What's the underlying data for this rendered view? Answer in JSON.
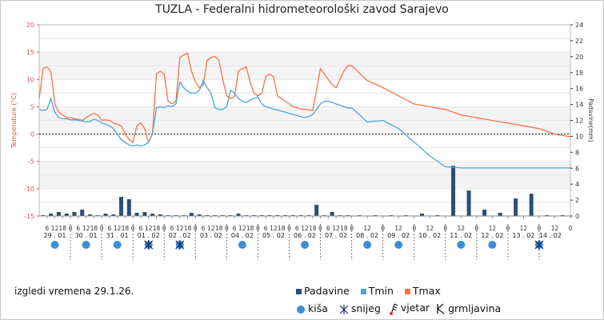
{
  "title": "TUZLA - Federalni hidrometeorološki zavod Sarajevo",
  "issued_label": "izgledi vremena 29.1.26.",
  "legend": {
    "padavine": "Padavine",
    "tmin": "Tmin",
    "tmax": "Tmax",
    "kisa": "kiša",
    "snijeg": "snijeg",
    "vjetar": "vjetar",
    "grmljavina": "grmljavina"
  },
  "colors": {
    "tmax": "#ff7043",
    "tmin": "#4da6d6",
    "precip": "#2b4e7a",
    "rain": "#3a8fd9",
    "snow": "#1a2f6a",
    "grid": "#e6e6e6"
  },
  "chart_data": {
    "type": "line",
    "title": "TUZLA - Federalni hidrometeorološki zavod Sarajevo",
    "ylabel": "Temperature (°C)",
    "y2label": "Padavine(mm)",
    "ylim": [
      -15,
      20
    ],
    "y2lim": [
      0,
      24
    ],
    "yticks": [
      -15,
      -10,
      -5,
      0,
      5,
      10,
      15,
      20
    ],
    "y2ticks": [
      0,
      2,
      4,
      6,
      8,
      10,
      12,
      14,
      16,
      18,
      20,
      22,
      24
    ],
    "grid": true,
    "x_unit": "hours since 29.01 00:00",
    "days": [
      "29 . 01",
      "30 . 01",
      "31 . 01",
      "01 . 02",
      "02 . 02",
      "03 . 02",
      "04 . 02",
      "05 . 02",
      "06 . 02",
      "07 . 02",
      "08 . 02",
      "09 . 02",
      "10 . 02",
      "11 . 02",
      "12 . 02",
      "13 . 02",
      "14 . 02"
    ],
    "hour_ticks": [
      [
        "6",
        6
      ],
      [
        "12",
        12
      ],
      [
        "18",
        18
      ],
      [
        "0",
        24
      ],
      [
        "6",
        30
      ],
      [
        "12",
        36
      ],
      [
        "18",
        42
      ],
      [
        "0",
        48
      ],
      [
        "6",
        54
      ],
      [
        "12",
        60
      ],
      [
        "18",
        66
      ],
      [
        "0",
        72
      ],
      [
        "6",
        78
      ],
      [
        "12",
        84
      ],
      [
        "18",
        90
      ],
      [
        "0",
        96
      ],
      [
        "6",
        102
      ],
      [
        "12",
        108
      ],
      [
        "18",
        114
      ],
      [
        "0",
        120
      ],
      [
        "6",
        126
      ],
      [
        "12",
        132
      ],
      [
        "18",
        138
      ],
      [
        "0",
        144
      ],
      [
        "6",
        150
      ],
      [
        "12",
        156
      ],
      [
        "18",
        162
      ],
      [
        "0",
        168
      ],
      [
        "6",
        174
      ],
      [
        "12",
        180
      ],
      [
        "18",
        186
      ],
      [
        "0",
        192
      ],
      [
        "6",
        198
      ],
      [
        "12",
        204
      ],
      [
        "18",
        210
      ],
      [
        "0",
        216
      ],
      [
        "6",
        222
      ],
      [
        "12",
        228
      ],
      [
        "18",
        234
      ],
      [
        "0",
        240
      ],
      [
        "12",
        252
      ],
      [
        "0",
        264
      ],
      [
        "12",
        276
      ],
      [
        "0",
        288
      ],
      [
        "12",
        300
      ],
      [
        "0",
        312
      ],
      [
        "12",
        324
      ],
      [
        "0",
        336
      ],
      [
        "12",
        348
      ],
      [
        "0",
        360
      ],
      [
        "12",
        372
      ],
      [
        "0",
        384
      ],
      [
        "12",
        396
      ],
      [
        "0",
        408
      ]
    ],
    "series": [
      {
        "name": "Tmax",
        "x": [
          0,
          3,
          6,
          9,
          12,
          15,
          18,
          21,
          24,
          27,
          30,
          33,
          36,
          39,
          42,
          45,
          48,
          51,
          54,
          57,
          60,
          63,
          66,
          69,
          72,
          75,
          78,
          81,
          84,
          87,
          90,
          93,
          96,
          99,
          102,
          105,
          108,
          111,
          114,
          117,
          120,
          123,
          126,
          129,
          132,
          135,
          138,
          141,
          144,
          147,
          150,
          153,
          156,
          159,
          162,
          165,
          168,
          171,
          174,
          177,
          180,
          183,
          186,
          189,
          192,
          195,
          198,
          201,
          204,
          207,
          210,
          213,
          216,
          219,
          222,
          225,
          228,
          231,
          234,
          237,
          240,
          252,
          264,
          276,
          288,
          300,
          312,
          324,
          336,
          348,
          360,
          372,
          384,
          396,
          408
        ],
        "values": [
          6.5,
          12.0,
          12.3,
          11.5,
          5.5,
          4.0,
          3.5,
          3.0,
          3.0,
          2.8,
          2.7,
          2.5,
          3.0,
          3.5,
          3.8,
          3.5,
          2.5,
          2.6,
          2.5,
          2.0,
          1.8,
          1.5,
          0.0,
          -1.0,
          -1.5,
          1.5,
          2.0,
          1.0,
          -1.5,
          0.0,
          11.0,
          11.5,
          11.0,
          6.0,
          5.5,
          6.0,
          14.0,
          14.5,
          14.8,
          11.5,
          9.5,
          8.5,
          9.0,
          13.5,
          14.0,
          14.2,
          13.5,
          10.0,
          7.0,
          6.5,
          6.8,
          11.5,
          12.0,
          12.3,
          9.5,
          7.5,
          7.0,
          7.5,
          10.5,
          11.0,
          10.5,
          7.0,
          6.5,
          6.0,
          5.5,
          5.0,
          4.8,
          4.6,
          4.5,
          4.4,
          4.3,
          8.0,
          12.0,
          11.0,
          10.0,
          9.0,
          8.5,
          10.0,
          11.5,
          12.5,
          12.5,
          9.8,
          8.5,
          7.0,
          5.5,
          5.0,
          4.5,
          3.5,
          3.0,
          2.5,
          2.0,
          1.5,
          1.0,
          0.0,
          -0.5
        ]
      },
      {
        "name": "Tmin",
        "x": [
          0,
          3,
          6,
          9,
          12,
          15,
          18,
          21,
          24,
          27,
          30,
          33,
          36,
          39,
          42,
          45,
          48,
          51,
          54,
          57,
          60,
          63,
          66,
          69,
          72,
          75,
          78,
          81,
          84,
          87,
          90,
          93,
          96,
          99,
          102,
          105,
          108,
          111,
          114,
          117,
          120,
          123,
          126,
          129,
          132,
          135,
          138,
          141,
          144,
          147,
          150,
          153,
          156,
          159,
          162,
          165,
          168,
          171,
          174,
          177,
          180,
          183,
          186,
          189,
          192,
          195,
          198,
          201,
          204,
          207,
          210,
          213,
          216,
          219,
          222,
          225,
          228,
          231,
          234,
          237,
          240,
          252,
          264,
          276,
          288,
          300,
          312,
          324,
          336,
          348,
          360,
          372,
          384,
          396,
          408
        ],
        "values": [
          4.5,
          4.3,
          4.5,
          6.5,
          4.0,
          3.0,
          2.8,
          2.8,
          2.6,
          2.6,
          2.5,
          2.4,
          2.2,
          2.3,
          2.7,
          2.5,
          2.0,
          1.8,
          1.5,
          1.0,
          0.0,
          -1.0,
          -1.5,
          -2.0,
          -2.2,
          -2.0,
          -2.2,
          -2.0,
          -1.5,
          0.0,
          4.8,
          5.0,
          4.8,
          5.2,
          5.0,
          5.5,
          9.5,
          8.5,
          7.8,
          7.5,
          7.5,
          8.0,
          9.8,
          8.5,
          7.5,
          4.8,
          4.5,
          4.5,
          5.0,
          8.0,
          7.5,
          6.5,
          6.0,
          5.8,
          6.2,
          6.5,
          6.8,
          5.5,
          5.0,
          4.8,
          4.6,
          4.4,
          4.2,
          4.0,
          3.8,
          3.6,
          3.4,
          3.2,
          3.0,
          3.2,
          3.6,
          4.5,
          5.5,
          6.0,
          6.0,
          5.8,
          5.5,
          5.3,
          5.0,
          4.8,
          4.8,
          2.2,
          2.5,
          1.0,
          -1.5,
          -4.0,
          -6.0,
          -6.2,
          -6.2,
          -6.2,
          -6.2,
          -6.2,
          -6.2,
          -6.2,
          -6.2
        ]
      },
      {
        "name": "Padavine",
        "type": "bar",
        "x": [
          3,
          9,
          15,
          21,
          27,
          33,
          39,
          45,
          51,
          57,
          63,
          69,
          75,
          81,
          87,
          93,
          99,
          105,
          111,
          117,
          123,
          129,
          135,
          141,
          147,
          153,
          159,
          165,
          171,
          177,
          183,
          189,
          195,
          201,
          207,
          213,
          219,
          225,
          231,
          237,
          246,
          258,
          270,
          282,
          294,
          306,
          318,
          330,
          342,
          354,
          366,
          378,
          390,
          402
        ],
        "values": [
          0.1,
          0.3,
          0.5,
          0.3,
          0.5,
          0.8,
          0.2,
          0.1,
          0.3,
          0.2,
          2.4,
          2.1,
          0.4,
          0.5,
          0.3,
          0.2,
          0.1,
          0.1,
          0.1,
          0.4,
          0.2,
          0.1,
          0.1,
          0.1,
          0.1,
          0.3,
          0.1,
          0.1,
          0.1,
          0.1,
          0.1,
          0.1,
          0.1,
          0.1,
          0.1,
          1.4,
          0.1,
          0.5,
          0.1,
          0.1,
          0.1,
          0.1,
          0.1,
          0.1,
          0.3,
          0.1,
          6.3,
          3.2,
          0.8,
          0.4,
          2.2,
          2.8,
          0.1,
          0.1
        ]
      }
    ],
    "weather_icons": [
      {
        "day": "29 . 01",
        "type": "kiša"
      },
      {
        "day": "30 . 01",
        "type": "kiša"
      },
      {
        "day": "31 . 01",
        "type": "kiša"
      },
      {
        "day": "01 . 02",
        "type": "kiša+snijeg"
      },
      {
        "day": "02 . 02",
        "type": "kiša+snijeg"
      },
      {
        "day": "04 . 02",
        "type": "kiša"
      },
      {
        "day": "06 . 02",
        "type": "kiša"
      },
      {
        "day": "08 . 02",
        "type": "kiša"
      },
      {
        "day": "09 . 02",
        "type": "kiša"
      },
      {
        "day": "11 . 02",
        "type": "kiša"
      },
      {
        "day": "12 . 02",
        "type": "kiša"
      },
      {
        "day": "14 . 02",
        "type": "kiša+snijeg"
      }
    ]
  }
}
